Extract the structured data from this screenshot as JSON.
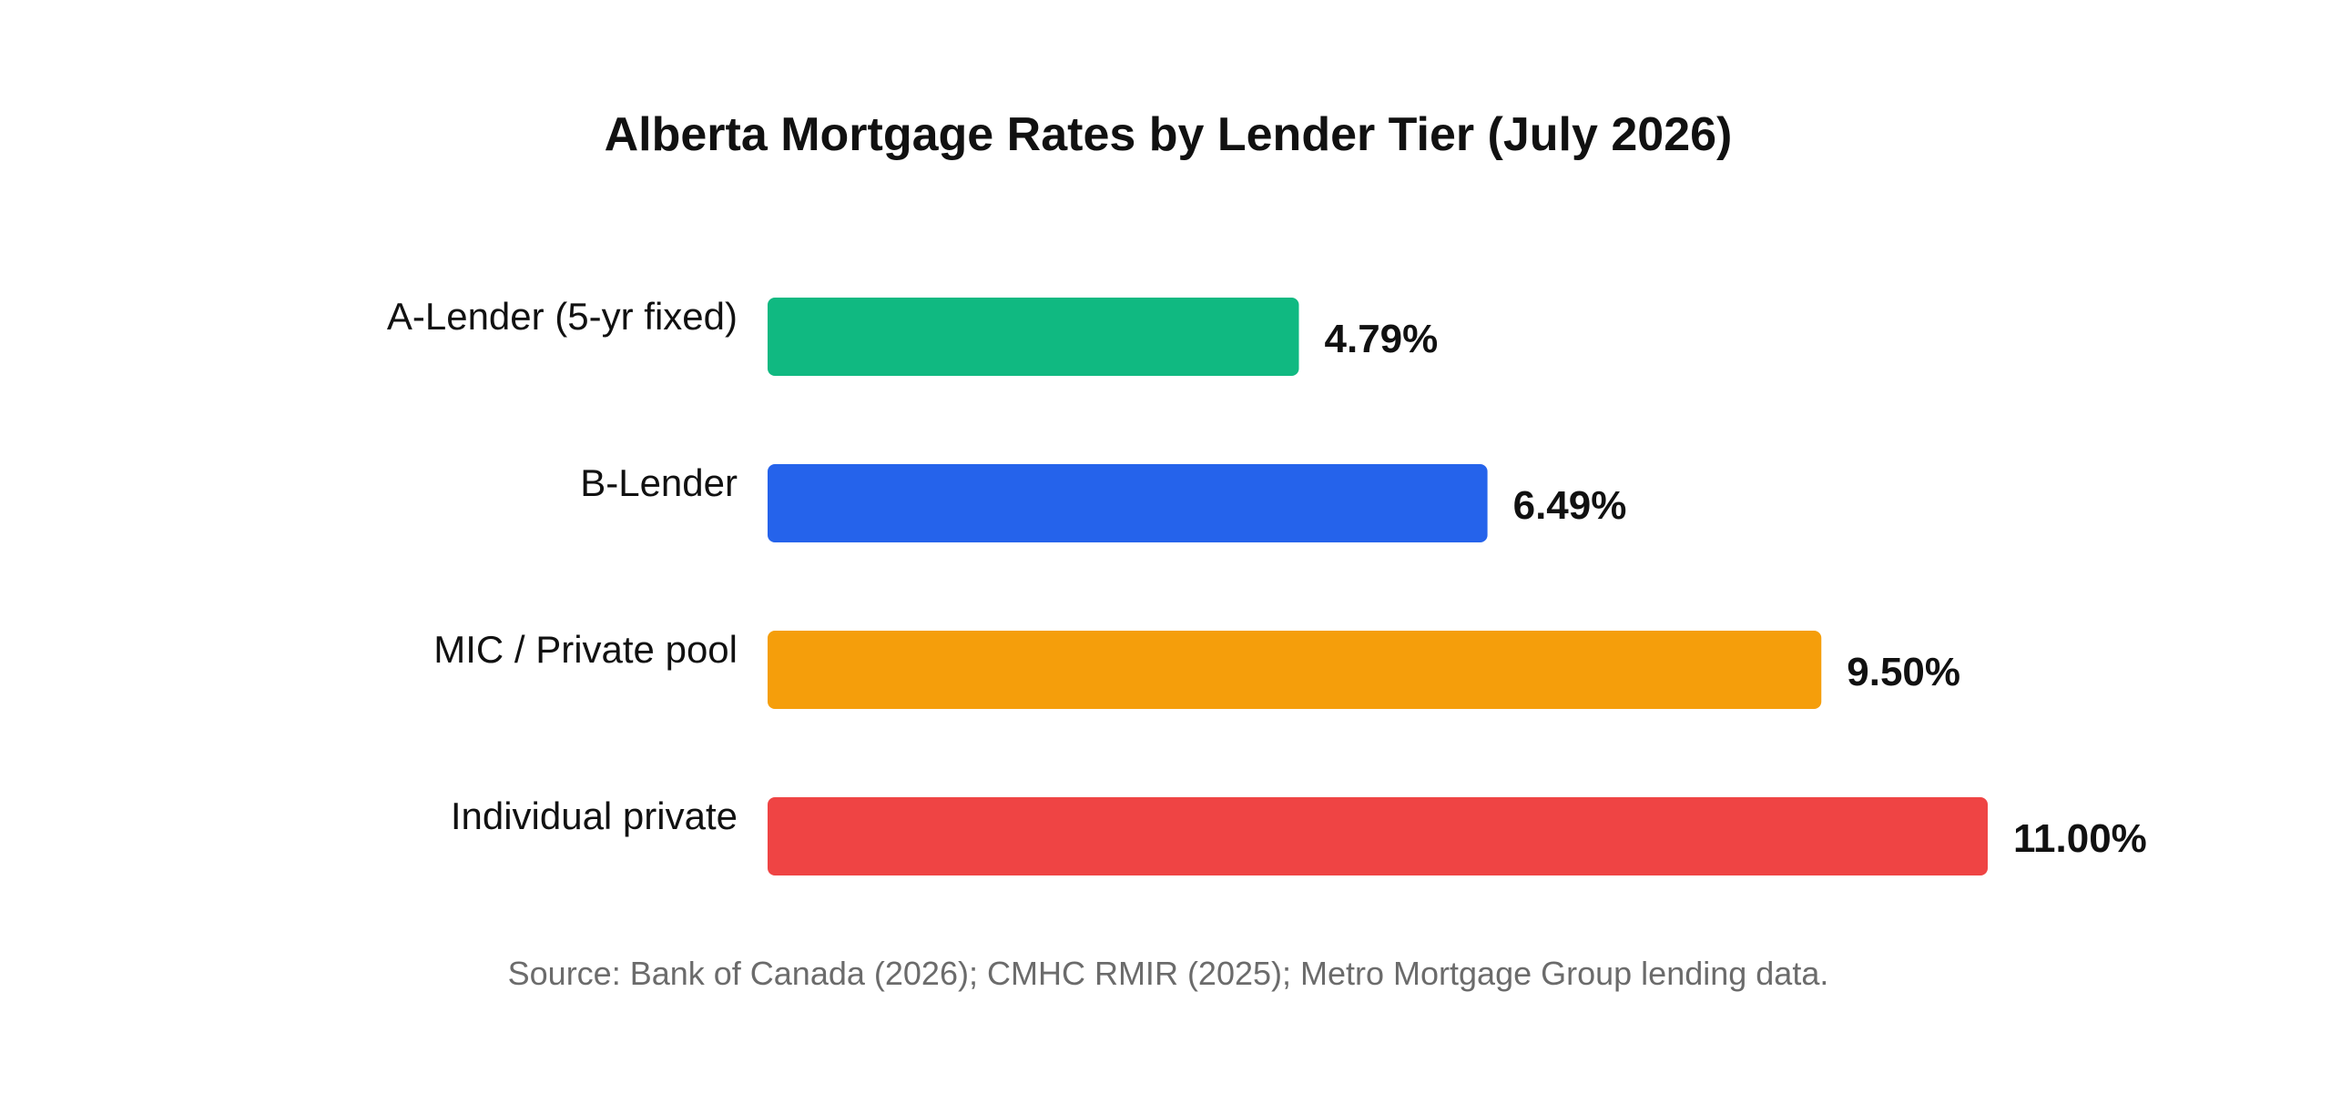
{
  "chart_data": {
    "type": "bar",
    "orientation": "horizontal",
    "title": "Alberta Mortgage Rates by Lender Tier (July 2026)",
    "categories": [
      "A-Lender (5-yr fixed)",
      "B-Lender",
      "MIC / Private pool",
      "Individual private"
    ],
    "values": [
      4.79,
      6.49,
      9.5,
      11.0
    ],
    "value_labels": [
      "4.79%",
      "6.49%",
      "9.50%",
      "11.00%"
    ],
    "colors": [
      "#10b981",
      "#2563eb",
      "#f59e0b",
      "#ef4444"
    ],
    "xlim": [
      0,
      11
    ],
    "xlabel": "",
    "ylabel": "",
    "grid": false,
    "legend": "none",
    "source": "Source: Bank of Canada (2026); CMHC RMIR (2025); Metro Mortgage Group lending data."
  },
  "style": {
    "text_color": "#111111",
    "source_color": "#6b6b6b"
  }
}
